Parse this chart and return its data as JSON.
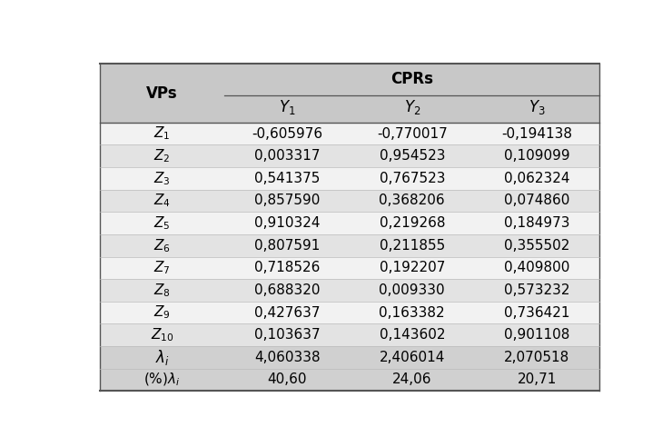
{
  "col_headers": [
    "Y1",
    "Y2",
    "Y3"
  ],
  "data": [
    [
      "-0,605976",
      "-0,770017",
      "-0,194138"
    ],
    [
      "0,003317",
      "0,954523",
      "0,109099"
    ],
    [
      "0,541375",
      "0,767523",
      "0,062324"
    ],
    [
      "0,857590",
      "0,368206",
      "0,074860"
    ],
    [
      "0,910324",
      "0,219268",
      "0,184973"
    ],
    [
      "0,807591",
      "0,211855",
      "0,355502"
    ],
    [
      "0,718526",
      "0,192207",
      "0,409800"
    ],
    [
      "0,688320",
      "0,009330",
      "0,573232"
    ],
    [
      "0,427637",
      "0,163382",
      "0,736421"
    ],
    [
      "0,103637",
      "0,143602",
      "0,901108"
    ],
    [
      "4,060338",
      "2,406014",
      "2,070518"
    ],
    [
      "40,60",
      "24,06",
      "20,71"
    ]
  ],
  "header_color": "#c8c8c8",
  "odd_color": "#f2f2f2",
  "even_color": "#e3e3e3",
  "last_color": "#d0d0d0",
  "font_size": 11,
  "header_font_size": 12
}
